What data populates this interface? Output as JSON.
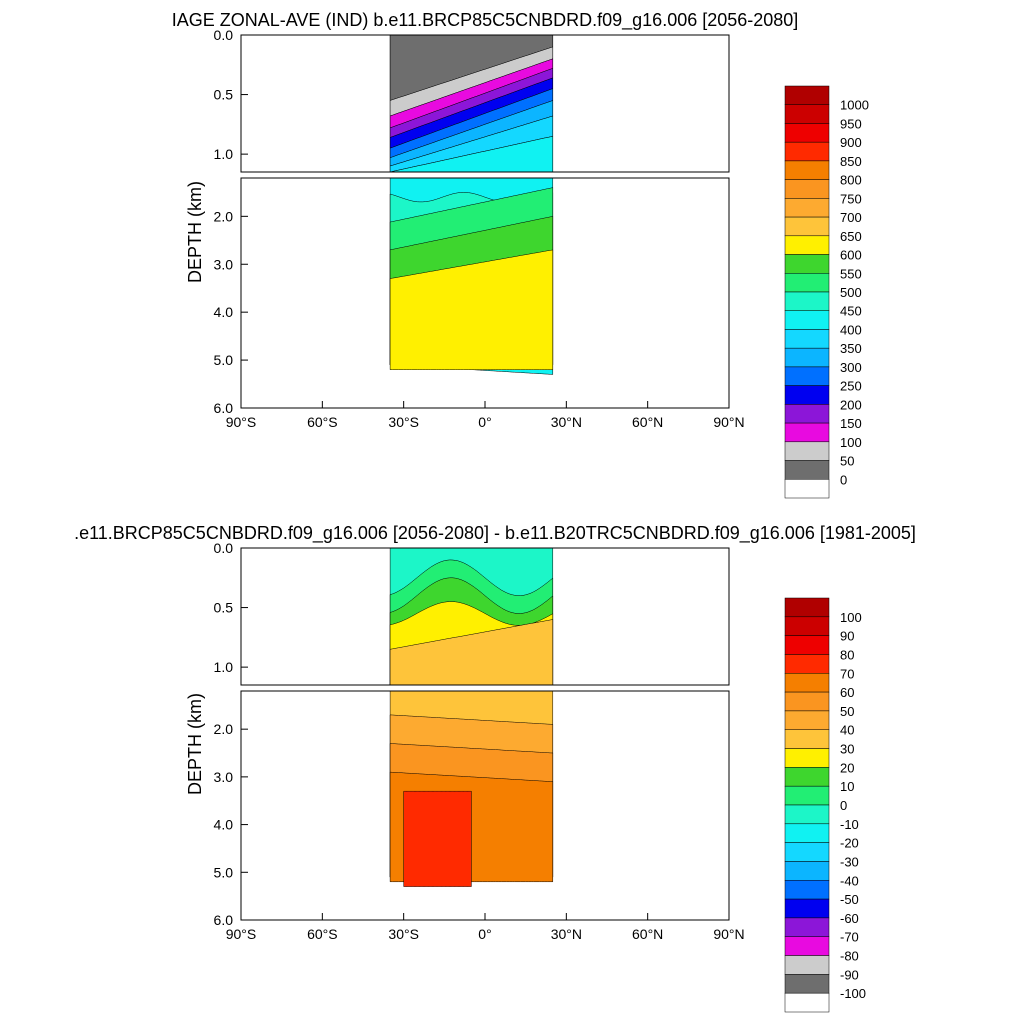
{
  "chart_data": [
    {
      "type": "heatmap",
      "title": "IAGE ZONAL-AVE (IND) b.e11.BRCP85C5CNBDRD.f09_g16.006 [2056-2080]",
      "ylabel": "DEPTH (km)",
      "xlim": [
        -90,
        90
      ],
      "ylim": [
        0,
        6
      ],
      "x_ticks": [
        -90,
        -60,
        -30,
        0,
        30,
        60,
        90
      ],
      "x_tick_labels": [
        "90°S",
        "60°S",
        "30°S",
        "0°",
        "30°N",
        "60°N",
        "90°N"
      ],
      "y_ticks_upper": [
        0,
        0.5,
        1.0
      ],
      "y_tick_labels_upper": [
        "0.0",
        "0.5",
        "1.0"
      ],
      "y_ticks_lower": [
        2,
        3,
        4,
        5,
        6
      ],
      "y_tick_labels_lower": [
        "2.0",
        "3.0",
        "4.0",
        "5.0",
        "6.0"
      ],
      "colorbar": {
        "labels": [
          "1000",
          "950",
          "900",
          "850",
          "800",
          "750",
          "700",
          "650",
          "600",
          "550",
          "500",
          "450",
          "400",
          "350",
          "300",
          "250",
          "200",
          "150",
          "100",
          "50",
          "0"
        ],
        "colors": [
          "#b00000",
          "#cc0000",
          "#ee0000",
          "#ff2a00",
          "#f57f00",
          "#fa9520",
          "#fdaa30",
          "#fec43a",
          "#fff000",
          "#3ed62e",
          "#22ee74",
          "#1cf6c8",
          "#10f2f2",
          "#14d8ff",
          "#0cb5ff",
          "#0070ff",
          "#0000f0",
          "#8c16d8",
          "#e80ae0",
          "#cccccc",
          "#6e6e6e",
          "#ffffff"
        ]
      }
    },
    {
      "type": "heatmap",
      "title": ".e11.BRCP85C5CNBDRD.f09_g16.006 [2056-2080] - b.e11.B20TRC5CNBDRD.f09_g16.006 [1981-2005]",
      "ylabel": "DEPTH (km)",
      "xlim": [
        -90,
        90
      ],
      "ylim": [
        0,
        6
      ],
      "x_ticks": [
        -90,
        -60,
        -30,
        0,
        30,
        60,
        90
      ],
      "x_tick_labels": [
        "90°S",
        "60°S",
        "30°S",
        "0°",
        "30°N",
        "60°N",
        "90°N"
      ],
      "y_ticks_upper": [
        0,
        0.5,
        1.0
      ],
      "y_tick_labels_upper": [
        "0.0",
        "0.5",
        "1.0"
      ],
      "y_ticks_lower": [
        2,
        3,
        4,
        5,
        6
      ],
      "y_tick_labels_lower": [
        "2.0",
        "3.0",
        "4.0",
        "5.0",
        "6.0"
      ],
      "colorbar": {
        "labels": [
          "100",
          "90",
          "80",
          "70",
          "60",
          "50",
          "40",
          "30",
          "20",
          "10",
          "0",
          "-10",
          "-20",
          "-30",
          "-40",
          "-50",
          "-60",
          "-70",
          "-80",
          "-90",
          "-100"
        ],
        "colors": [
          "#b00000",
          "#cc0000",
          "#ee0000",
          "#ff2a00",
          "#f57f00",
          "#fa9520",
          "#fdaa30",
          "#fec43a",
          "#fff000",
          "#3ed62e",
          "#22ee74",
          "#1cf6c8",
          "#10f2f2",
          "#14d8ff",
          "#0cb5ff",
          "#0070ff",
          "#0000f0",
          "#8c16d8",
          "#e80ae0",
          "#cccccc",
          "#6e6e6e",
          "#ffffff"
        ]
      }
    }
  ]
}
